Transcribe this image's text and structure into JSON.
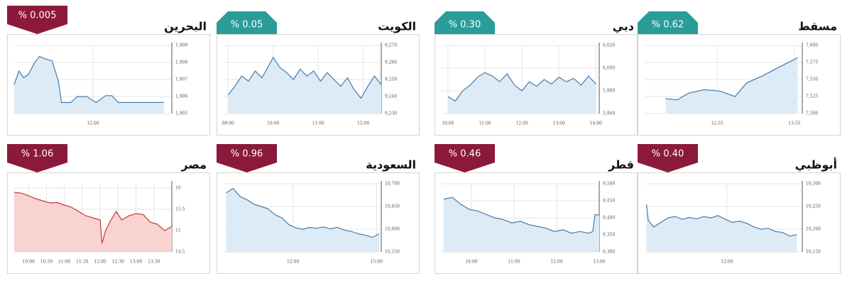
{
  "chart_data": [
    {
      "type": "line",
      "title": "البحرين",
      "badge": "% 0.005",
      "badge_color": "#8b1a3a",
      "badge_shape": "down",
      "color": "#4a7aa8",
      "area_color": "#dcebf6",
      "grid": true,
      "x": [
        9.5,
        9.65,
        9.8,
        9.95,
        10.15,
        10.3,
        10.5,
        10.7,
        10.9,
        11,
        11.3,
        11.5,
        11.8,
        12.1,
        12.4,
        12.6,
        12.8,
        14.25
      ],
      "values": [
        1906.7,
        1907.5,
        1907.1,
        1907.3,
        1908.0,
        1908.35,
        1908.2,
        1908.1,
        1906.9,
        1905.65,
        1905.65,
        1906.0,
        1906.0,
        1905.65,
        1906.05,
        1906.05,
        1905.65,
        1905.65
      ],
      "xlim": [
        9.5,
        14.5
      ],
      "xticks": [
        {
          "value": 12,
          "label": "12:00"
        }
      ],
      "ylim": [
        1905,
        1909
      ],
      "yticks": [
        {
          "value": 1905,
          "label": "1,905"
        },
        {
          "value": 1906,
          "label": "1,906"
        },
        {
          "value": 1907,
          "label": "1,907"
        },
        {
          "value": 1908,
          "label": "1,908"
        },
        {
          "value": 1909,
          "label": "1,909"
        }
      ]
    },
    {
      "type": "line",
      "title": "الكويت",
      "badge": "% 0.05",
      "badge_color": "#2a9d98",
      "badge_shape": "up",
      "color": "#4a7aa8",
      "area_color": "#dcebf6",
      "grid": true,
      "x": [
        9.0,
        9.15,
        9.3,
        9.45,
        9.6,
        9.75,
        9.9,
        10.0,
        10.15,
        10.3,
        10.45,
        10.6,
        10.75,
        10.9,
        11.05,
        11.2,
        11.35,
        11.5,
        11.65,
        11.8,
        11.95,
        12.1,
        12.25,
        12.4
      ],
      "values": [
        9241,
        9246,
        9252,
        9249,
        9255,
        9251,
        9258,
        9263,
        9257,
        9254,
        9250,
        9256,
        9252,
        9255,
        9249,
        9254,
        9250,
        9246,
        9251,
        9244,
        9239,
        9246,
        9252,
        9247
      ],
      "xlim": [
        8.9,
        12.4
      ],
      "xticks": [
        {
          "value": 9,
          "label": "09:00"
        },
        {
          "value": 10,
          "label": "10:00"
        },
        {
          "value": 11,
          "label": "11:00"
        },
        {
          "value": 12,
          "label": "12:00"
        }
      ],
      "ylim": [
        9230,
        9270
      ],
      "yticks": [
        {
          "value": 9230,
          "label": "9,230"
        },
        {
          "value": 9240,
          "label": "9,240"
        },
        {
          "value": 9250,
          "label": "9,250"
        },
        {
          "value": 9260,
          "label": "9,260"
        },
        {
          "value": 9270,
          "label": "9,270"
        }
      ]
    },
    {
      "type": "line",
      "title": "دبي",
      "badge": "% 0.30",
      "badge_color": "#2a9d98",
      "badge_shape": "up",
      "color": "#4a7aa8",
      "area_color": "#dcebf6",
      "grid": true,
      "x": [
        10.0,
        10.2,
        10.4,
        10.6,
        10.8,
        11.0,
        11.2,
        11.4,
        11.6,
        11.8,
        12.0,
        12.2,
        12.4,
        12.6,
        12.8,
        13.0,
        13.2,
        13.4,
        13.6,
        13.8,
        14.0
      ],
      "values": [
        5975,
        5971,
        5980,
        5985,
        5992,
        5996,
        5993,
        5988,
        5995,
        5985,
        5980,
        5988,
        5984,
        5990,
        5986,
        5992,
        5988,
        5991,
        5985,
        5993,
        5986
      ],
      "xlim": [
        9.83,
        14.09
      ],
      "xticks": [
        {
          "value": 10,
          "label": "10:00"
        },
        {
          "value": 11,
          "label": "11:00"
        },
        {
          "value": 12,
          "label": "12:00"
        },
        {
          "value": 13,
          "label": "13:00"
        },
        {
          "value": 14,
          "label": "14:00"
        }
      ],
      "ylim": [
        5960,
        6020
      ],
      "yticks": [
        {
          "value": 5960,
          "label": "5,960"
        },
        {
          "value": 5980,
          "label": "5,980"
        },
        {
          "value": 6000,
          "label": "6,000"
        },
        {
          "value": 6020,
          "label": "6,020"
        }
      ]
    },
    {
      "type": "line",
      "title": "مسقط",
      "badge": "% 0.62",
      "badge_color": "#2a9d98",
      "badge_shape": "up",
      "color": "#4a7aa8",
      "area_color": "#dcebf6",
      "grid": true,
      "x": [
        12.25,
        12.4,
        12.55,
        12.75,
        12.95,
        13.15,
        13.3,
        13.5,
        13.7,
        13.96
      ],
      "values": [
        7522,
        7520,
        7530,
        7535,
        7533,
        7525,
        7545,
        7555,
        7567,
        7582
      ],
      "xlim": [
        11.98,
        14.02
      ],
      "xticks": [
        {
          "value": 12.917,
          "label": "12:55"
        },
        {
          "value": 13.917,
          "label": "13:55"
        }
      ],
      "ylim": [
        7500,
        7600
      ],
      "yticks": [
        {
          "value": 7500,
          "label": "7,500"
        },
        {
          "value": 7525,
          "label": "7,525"
        },
        {
          "value": 7550,
          "label": "7,550"
        },
        {
          "value": 7575,
          "label": "7,575"
        },
        {
          "value": 7600,
          "label": "7,600"
        }
      ]
    },
    {
      "type": "line",
      "title": "مصر",
      "badge": "% 1.06",
      "badge_color": "#8b1a3a",
      "badge_shape": "down",
      "color": "#c8382e",
      "area_color": "#f8d3d1",
      "grid": true,
      "x": [
        9.6,
        9.8,
        10.0,
        10.2,
        10.4,
        10.6,
        10.8,
        11.0,
        11.2,
        11.4,
        11.6,
        11.8,
        12.0,
        12.05,
        12.15,
        12.3,
        12.45,
        12.6,
        12.8,
        13.0,
        13.2,
        13.4,
        13.6,
        13.8,
        14.0
      ],
      "values": [
        15.9,
        15.88,
        15.82,
        15.75,
        15.7,
        15.65,
        15.66,
        15.6,
        15.55,
        15.45,
        15.35,
        15.3,
        15.25,
        14.7,
        15.0,
        15.25,
        15.45,
        15.25,
        15.35,
        15.4,
        15.38,
        15.2,
        15.15,
        15.0,
        15.1
      ],
      "xlim": [
        9.6,
        14.0
      ],
      "xticks": [
        {
          "value": 10,
          "label": "10:00"
        },
        {
          "value": 10.5,
          "label": "10:30"
        },
        {
          "value": 11,
          "label": "11:00"
        },
        {
          "value": 11.5,
          "label": "11:30"
        },
        {
          "value": 12,
          "label": "12:00"
        },
        {
          "value": 12.5,
          "label": "12:30"
        },
        {
          "value": 13,
          "label": "13:00"
        },
        {
          "value": 13.5,
          "label": "13:30"
        }
      ],
      "ylim": [
        14.5,
        16.1
      ],
      "yticks": [
        14.5,
        15,
        15.5,
        16
      ]
    },
    {
      "type": "line",
      "title": "السعودية",
      "badge": "% 0.96",
      "badge_color": "#8b1a3a",
      "badge_shape": "down",
      "color": "#4a7aa8",
      "area_color": "#dcebf6",
      "grid": true,
      "x": [
        9.6,
        9.85,
        10.1,
        10.35,
        10.6,
        10.85,
        11.1,
        11.35,
        11.6,
        11.85,
        12.1,
        12.35,
        12.6,
        12.85,
        13.1,
        13.35,
        13.6,
        13.85,
        14.1,
        14.35,
        14.6,
        14.85,
        15.1
      ],
      "values": [
        10680,
        10690,
        10672,
        10665,
        10655,
        10650,
        10645,
        10632,
        10625,
        10610,
        10603,
        10600,
        10604,
        10602,
        10605,
        10601,
        10604,
        10598,
        10595,
        10590,
        10587,
        10582,
        10590
      ],
      "xlim": [
        9.51,
        15.17
      ],
      "xticks": [
        {
          "value": 12,
          "label": "12:00"
        },
        {
          "value": 15,
          "label": "15:00"
        }
      ],
      "ylim": [
        10550,
        10700
      ],
      "yticks": [
        {
          "value": 10550,
          "label": "10,550"
        },
        {
          "value": 10600,
          "label": "10,600"
        },
        {
          "value": 10650,
          "label": "10,650"
        },
        {
          "value": 10700,
          "label": "10,700"
        }
      ]
    },
    {
      "type": "line",
      "title": "قطر",
      "badge": "% 0.46",
      "badge_color": "#8b1a3a",
      "badge_shape": "down",
      "color": "#4a7aa8",
      "area_color": "#dcebf6",
      "grid": true,
      "x": [
        9.35,
        9.55,
        9.75,
        9.95,
        10.15,
        10.35,
        10.55,
        10.75,
        10.95,
        11.15,
        11.35,
        11.55,
        11.75,
        11.95,
        12.15,
        12.35,
        12.55,
        12.75,
        12.85,
        12.9,
        13.0
      ],
      "values": [
        9455,
        9460,
        9440,
        9425,
        9420,
        9410,
        9400,
        9395,
        9385,
        9390,
        9380,
        9375,
        9370,
        9360,
        9365,
        9355,
        9360,
        9355,
        9360,
        9410,
        9408
      ],
      "xlim": [
        9.3,
        13.0
      ],
      "xticks": [
        {
          "value": 10,
          "label": "10:00"
        },
        {
          "value": 11,
          "label": "11:00"
        },
        {
          "value": 12,
          "label": "12:00"
        },
        {
          "value": 13,
          "label": "13:00"
        }
      ],
      "ylim": [
        9300,
        9500
      ],
      "yticks": [
        {
          "value": 9300,
          "label": "9,300"
        },
        {
          "value": 9350,
          "label": "9,350"
        },
        {
          "value": 9400,
          "label": "9,400"
        },
        {
          "value": 9450,
          "label": "9,450"
        },
        {
          "value": 9500,
          "label": "9,500"
        }
      ]
    },
    {
      "type": "line",
      "title": "أبوظبي",
      "badge": "% 0.40",
      "badge_color": "#8b1a3a",
      "badge_shape": "down",
      "color": "#4a7aa8",
      "area_color": "#dcebf6",
      "grid": true,
      "x": [
        9.75,
        9.8,
        9.95,
        10.15,
        10.35,
        10.55,
        10.75,
        10.95,
        11.15,
        11.35,
        11.55,
        11.75,
        11.95,
        12.15,
        12.35,
        12.55,
        12.75,
        12.95,
        13.15,
        13.35,
        13.55,
        13.75,
        13.95
      ],
      "values": [
        10255,
        10220,
        10205,
        10215,
        10225,
        10228,
        10222,
        10226,
        10223,
        10228,
        10225,
        10230,
        10222,
        10215,
        10218,
        10213,
        10205,
        10200,
        10202,
        10195,
        10193,
        10185,
        10188
      ],
      "xlim": [
        9.7,
        14.1
      ],
      "xticks": [
        {
          "value": 12,
          "label": "12:00"
        }
      ],
      "ylim": [
        10150,
        10300
      ],
      "yticks": [
        {
          "value": 10150,
          "label": "10,150"
        },
        {
          "value": 10200,
          "label": "10,200"
        },
        {
          "value": 10250,
          "label": "10,250"
        },
        {
          "value": 10300,
          "label": "10,300"
        }
      ]
    }
  ]
}
